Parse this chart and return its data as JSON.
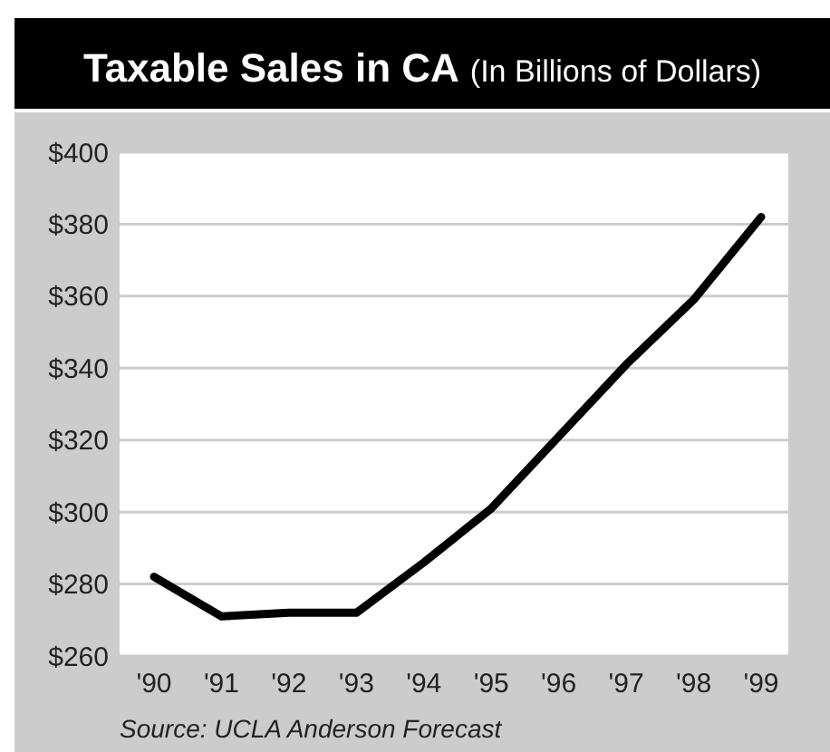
{
  "chart_data": {
    "type": "line",
    "title": "Taxable Sales in CA",
    "subtitle": "(In Billions of Dollars)",
    "categories": [
      "'90",
      "'91",
      "'92",
      "'93",
      "'94",
      "'95",
      "'96",
      "'97",
      "'98",
      "'99"
    ],
    "series": [
      {
        "color": "#000000",
        "values": [
          282,
          271,
          272,
          272,
          286,
          301,
          321,
          341,
          359,
          382
        ]
      }
    ],
    "ylim": [
      260,
      400
    ],
    "yticks": [
      {
        "value": 260,
        "label": "$260"
      },
      {
        "value": 280,
        "label": "$280"
      },
      {
        "value": 300,
        "label": "$300"
      },
      {
        "value": 320,
        "label": "$320"
      },
      {
        "value": 340,
        "label": "$340"
      },
      {
        "value": 360,
        "label": "$360"
      },
      {
        "value": 380,
        "label": "$380"
      },
      {
        "value": 400,
        "label": "$400"
      }
    ],
    "grid": "y",
    "marker": "none",
    "line_style": "solid",
    "annotations": [
      "Source: UCLA Anderson Forecast"
    ]
  }
}
